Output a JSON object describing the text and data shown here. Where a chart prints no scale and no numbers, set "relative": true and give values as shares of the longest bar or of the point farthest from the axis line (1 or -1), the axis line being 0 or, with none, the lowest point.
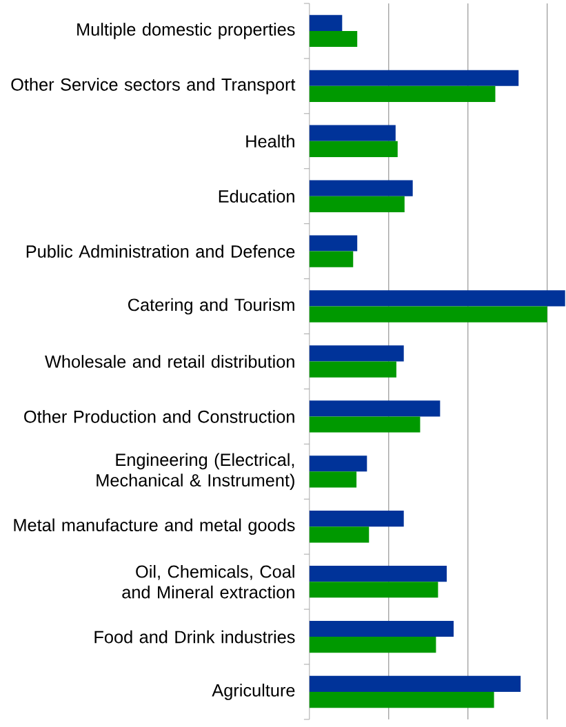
{
  "chart_data": {
    "type": "bar",
    "orientation": "horizontal",
    "relative": true,
    "grid": "x",
    "categories": [
      "Multiple domestic properties",
      "Other Service sectors and Transport",
      "Health",
      "Education",
      "Public Administration and Defence",
      "Catering and Tourism",
      "Wholesale and retail distribution",
      "Other Production and Construction",
      "Engineering (Electrical, Mechanical & Instrument)",
      "Metal manufacture and metal goods",
      "Oil, Chemicals, Coal and Mineral extraction",
      "Food and Drink industries",
      "Agriculture"
    ],
    "series": [
      {
        "color": "#003399",
        "values": [
          0.128,
          0.818,
          0.337,
          0.404,
          0.187,
          1,
          0.369,
          0.511,
          0.225,
          0.369,
          0.537,
          0.564,
          0.826
        ]
      },
      {
        "color": "#009900",
        "values": [
          0.187,
          0.727,
          0.345,
          0.372,
          0.171,
          0.93,
          0.34,
          0.433,
          0.184,
          0.233,
          0.503,
          0.495,
          0.722
        ]
      }
    ]
  }
}
